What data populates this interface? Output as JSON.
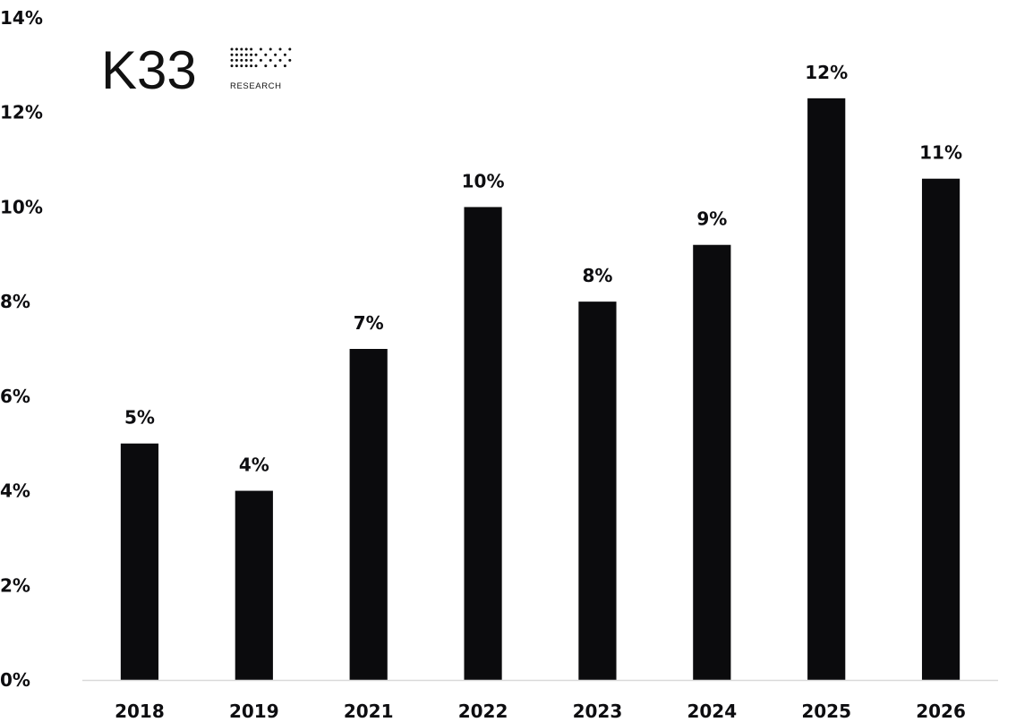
{
  "logo": {
    "wordmark": "K33",
    "subtitle": "RESEARCH"
  },
  "chart_data": {
    "type": "bar",
    "categories": [
      "2018",
      "2019",
      "2021",
      "2022",
      "2023",
      "2024",
      "2025",
      "2026"
    ],
    "values": [
      5.0,
      4.0,
      7.0,
      10.0,
      8.0,
      9.2,
      12.3,
      10.6
    ],
    "data_labels": [
      "5%",
      "4%",
      "7%",
      "10%",
      "8%",
      "9%",
      "12%",
      "11%"
    ],
    "y_ticks": [
      0,
      2,
      4,
      6,
      8,
      10,
      12,
      14
    ],
    "y_tick_labels": [
      "0%",
      "2%",
      "4%",
      "6%",
      "8%",
      "10%",
      "12%",
      "14%"
    ],
    "ylim": [
      0,
      14
    ],
    "title": "",
    "xlabel": "",
    "ylabel": "",
    "grid": false,
    "bar_color": "#0b0b0d"
  }
}
